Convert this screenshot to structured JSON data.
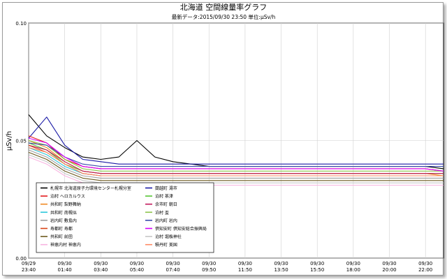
{
  "chart_data": {
    "type": "line",
    "title": "北海道 空間線量率グラフ",
    "subtitle": "最新データ:2015/09/30 23:50 単位:μSv/h",
    "ylabel": "μSv/h",
    "xlabel": "",
    "ylim": [
      0,
      0.1
    ],
    "y_ticks": [
      0.0,
      0.05,
      0.1
    ],
    "y_tick_labels": [
      "0.00",
      "0.05",
      "0.10"
    ],
    "grid": true,
    "legend_placement": "bottom-left",
    "x": [
      "23:40",
      "00:40",
      "01:40",
      "02:40",
      "03:40",
      "04:40",
      "05:40",
      "06:40",
      "07:40",
      "08:40",
      "09:50",
      "10:50",
      "11:50",
      "12:50",
      "13:50",
      "14:50",
      "15:50",
      "16:50",
      "18:00",
      "19:00",
      "20:00",
      "21:00",
      "22:00",
      "23:00"
    ],
    "x_tick_labels": [
      {
        "date": "09/29",
        "time": "23:40"
      },
      {
        "date": "09/30",
        "time": "01:40"
      },
      {
        "date": "09/30",
        "time": "03:40"
      },
      {
        "date": "09/30",
        "time": "05:40"
      },
      {
        "date": "09/30",
        "time": "07:40"
      },
      {
        "date": "09/30",
        "time": "09:50"
      },
      {
        "date": "09/30",
        "time": "11:50"
      },
      {
        "date": "09/30",
        "time": "13:50"
      },
      {
        "date": "09/30",
        "time": "15:50"
      },
      {
        "date": "09/30",
        "time": "18:00"
      },
      {
        "date": "09/30",
        "time": "20:00"
      },
      {
        "date": "09/30",
        "time": "22:00"
      }
    ],
    "series": [
      {
        "name": "札幌市 北海道原子力環境センター札幌分室",
        "color": "#000000",
        "values": [
          0.061,
          0.052,
          0.047,
          0.043,
          0.042,
          0.043,
          0.05,
          0.043,
          0.041,
          0.04,
          0.039,
          0.039,
          0.039,
          0.039,
          0.039,
          0.039,
          0.039,
          0.039,
          0.039,
          0.039,
          0.039,
          0.039,
          0.039,
          0.038
        ]
      },
      {
        "name": "蘭越町 湯市",
        "color": "#1a1aa6",
        "values": [
          0.051,
          0.06,
          0.048,
          0.042,
          0.041,
          0.04,
          0.04,
          0.04,
          0.04,
          0.04,
          0.04,
          0.04,
          0.04,
          0.04,
          0.04,
          0.04,
          0.04,
          0.04,
          0.04,
          0.04,
          0.04,
          0.04,
          0.04,
          0.04
        ]
      },
      {
        "name": "泊村 ヘロカルウス",
        "color": "#e41a1c",
        "values": [
          0.052,
          0.049,
          0.042,
          0.039,
          0.038,
          0.038,
          0.038,
          0.038,
          0.038,
          0.038,
          0.038,
          0.038,
          0.038,
          0.038,
          0.038,
          0.038,
          0.038,
          0.038,
          0.038,
          0.038,
          0.038,
          0.038,
          0.038,
          0.037
        ]
      },
      {
        "name": "泊村 茶津",
        "color": "#55c433",
        "values": [
          0.049,
          0.046,
          0.04,
          0.037,
          0.036,
          0.036,
          0.036,
          0.036,
          0.036,
          0.036,
          0.036,
          0.036,
          0.036,
          0.036,
          0.036,
          0.036,
          0.036,
          0.036,
          0.036,
          0.036,
          0.036,
          0.036,
          0.036,
          0.036
        ]
      },
      {
        "name": "共和町 梨野舞納",
        "color": "#f08a24",
        "values": [
          0.05,
          0.047,
          0.041,
          0.037,
          0.036,
          0.036,
          0.036,
          0.036,
          0.036,
          0.036,
          0.036,
          0.036,
          0.036,
          0.036,
          0.036,
          0.036,
          0.036,
          0.036,
          0.036,
          0.036,
          0.036,
          0.036,
          0.036,
          0.035
        ]
      },
      {
        "name": "余市町 朝日",
        "color": "#c2185b",
        "values": [
          0.048,
          0.046,
          0.041,
          0.037,
          0.036,
          0.036,
          0.036,
          0.036,
          0.036,
          0.036,
          0.036,
          0.036,
          0.036,
          0.036,
          0.036,
          0.036,
          0.036,
          0.036,
          0.036,
          0.036,
          0.036,
          0.036,
          0.036,
          0.036
        ]
      },
      {
        "name": "共和町 南幌似",
        "color": "#26c6da",
        "values": [
          0.047,
          0.044,
          0.039,
          0.036,
          0.035,
          0.035,
          0.035,
          0.035,
          0.035,
          0.035,
          0.035,
          0.035,
          0.035,
          0.035,
          0.035,
          0.035,
          0.035,
          0.035,
          0.035,
          0.035,
          0.035,
          0.035,
          0.035,
          0.035
        ]
      },
      {
        "name": "泊村 盃",
        "color": "#8bc34a",
        "values": [
          0.05,
          0.048,
          0.042,
          0.038,
          0.037,
          0.037,
          0.037,
          0.037,
          0.037,
          0.037,
          0.037,
          0.037,
          0.037,
          0.037,
          0.037,
          0.037,
          0.037,
          0.037,
          0.037,
          0.037,
          0.037,
          0.037,
          0.037,
          0.037
        ]
      },
      {
        "name": "岩内町 敷島内",
        "color": "#9e9e9e",
        "values": [
          0.046,
          0.043,
          0.038,
          0.035,
          0.034,
          0.034,
          0.034,
          0.034,
          0.034,
          0.034,
          0.034,
          0.034,
          0.034,
          0.034,
          0.034,
          0.034,
          0.034,
          0.034,
          0.034,
          0.034,
          0.034,
          0.034,
          0.034,
          0.034
        ]
      },
      {
        "name": "岩内町 岩内",
        "color": "#3949ab",
        "values": [
          0.049,
          0.048,
          0.043,
          0.04,
          0.039,
          0.039,
          0.039,
          0.039,
          0.039,
          0.039,
          0.039,
          0.039,
          0.039,
          0.039,
          0.039,
          0.039,
          0.039,
          0.039,
          0.039,
          0.039,
          0.039,
          0.039,
          0.039,
          0.039
        ]
      },
      {
        "name": "寿都町 寿都",
        "color": "#d84315",
        "values": [
          0.048,
          0.045,
          0.04,
          0.036,
          0.035,
          0.035,
          0.035,
          0.035,
          0.035,
          0.035,
          0.035,
          0.035,
          0.035,
          0.035,
          0.035,
          0.035,
          0.035,
          0.035,
          0.035,
          0.035,
          0.035,
          0.035,
          0.035,
          0.035
        ]
      },
      {
        "name": "倶知安町 倶知安総合振興局",
        "color": "#d500f9",
        "values": [
          0.051,
          0.049,
          0.043,
          0.039,
          0.038,
          0.038,
          0.038,
          0.038,
          0.038,
          0.038,
          0.038,
          0.038,
          0.038,
          0.038,
          0.038,
          0.038,
          0.038,
          0.038,
          0.038,
          0.038,
          0.038,
          0.038,
          0.038,
          0.037
        ]
      },
      {
        "name": "共和町 前田",
        "color": "#6d5a1e",
        "values": [
          0.045,
          0.042,
          0.037,
          0.034,
          0.033,
          0.033,
          0.033,
          0.033,
          0.033,
          0.033,
          0.033,
          0.033,
          0.033,
          0.033,
          0.033,
          0.033,
          0.033,
          0.033,
          0.033,
          0.033,
          0.033,
          0.033,
          0.033,
          0.033
        ]
      },
      {
        "name": "泊村 堀株神社",
        "color": "#c6c6c6",
        "values": [
          0.044,
          0.041,
          0.036,
          0.033,
          0.032,
          0.032,
          0.032,
          0.032,
          0.032,
          0.032,
          0.032,
          0.032,
          0.032,
          0.032,
          0.032,
          0.032,
          0.032,
          0.032,
          0.032,
          0.032,
          0.032,
          0.032,
          0.032,
          0.032
        ]
      },
      {
        "name": "神恵内村 神恵内",
        "color": "#f8b4e0",
        "values": [
          0.043,
          0.04,
          0.035,
          0.032,
          0.031,
          0.031,
          0.031,
          0.031,
          0.031,
          0.031,
          0.031,
          0.031,
          0.031,
          0.031,
          0.031,
          0.031,
          0.031,
          0.031,
          0.031,
          0.031,
          0.031,
          0.031,
          0.031,
          0.031
        ]
      },
      {
        "name": "積丹町 美国",
        "color": "#ff8a65",
        "values": [
          0.047,
          0.045,
          0.04,
          0.036,
          0.035,
          0.035,
          0.035,
          0.035,
          0.035,
          0.035,
          0.035,
          0.035,
          0.035,
          0.035,
          0.035,
          0.035,
          0.035,
          0.035,
          0.035,
          0.035,
          0.035,
          0.035,
          0.035,
          0.035
        ]
      }
    ]
  }
}
